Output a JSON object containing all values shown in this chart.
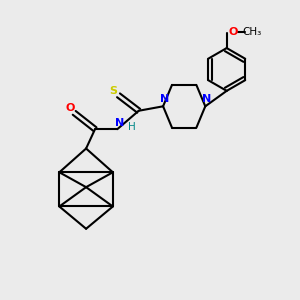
{
  "bg_color": "#ebebeb",
  "bond_color": "#000000",
  "colors": {
    "N": "#0000ff",
    "O": "#ff0000",
    "S": "#cccc00",
    "H": "#008888",
    "C": "#000000"
  },
  "lw": 1.5
}
